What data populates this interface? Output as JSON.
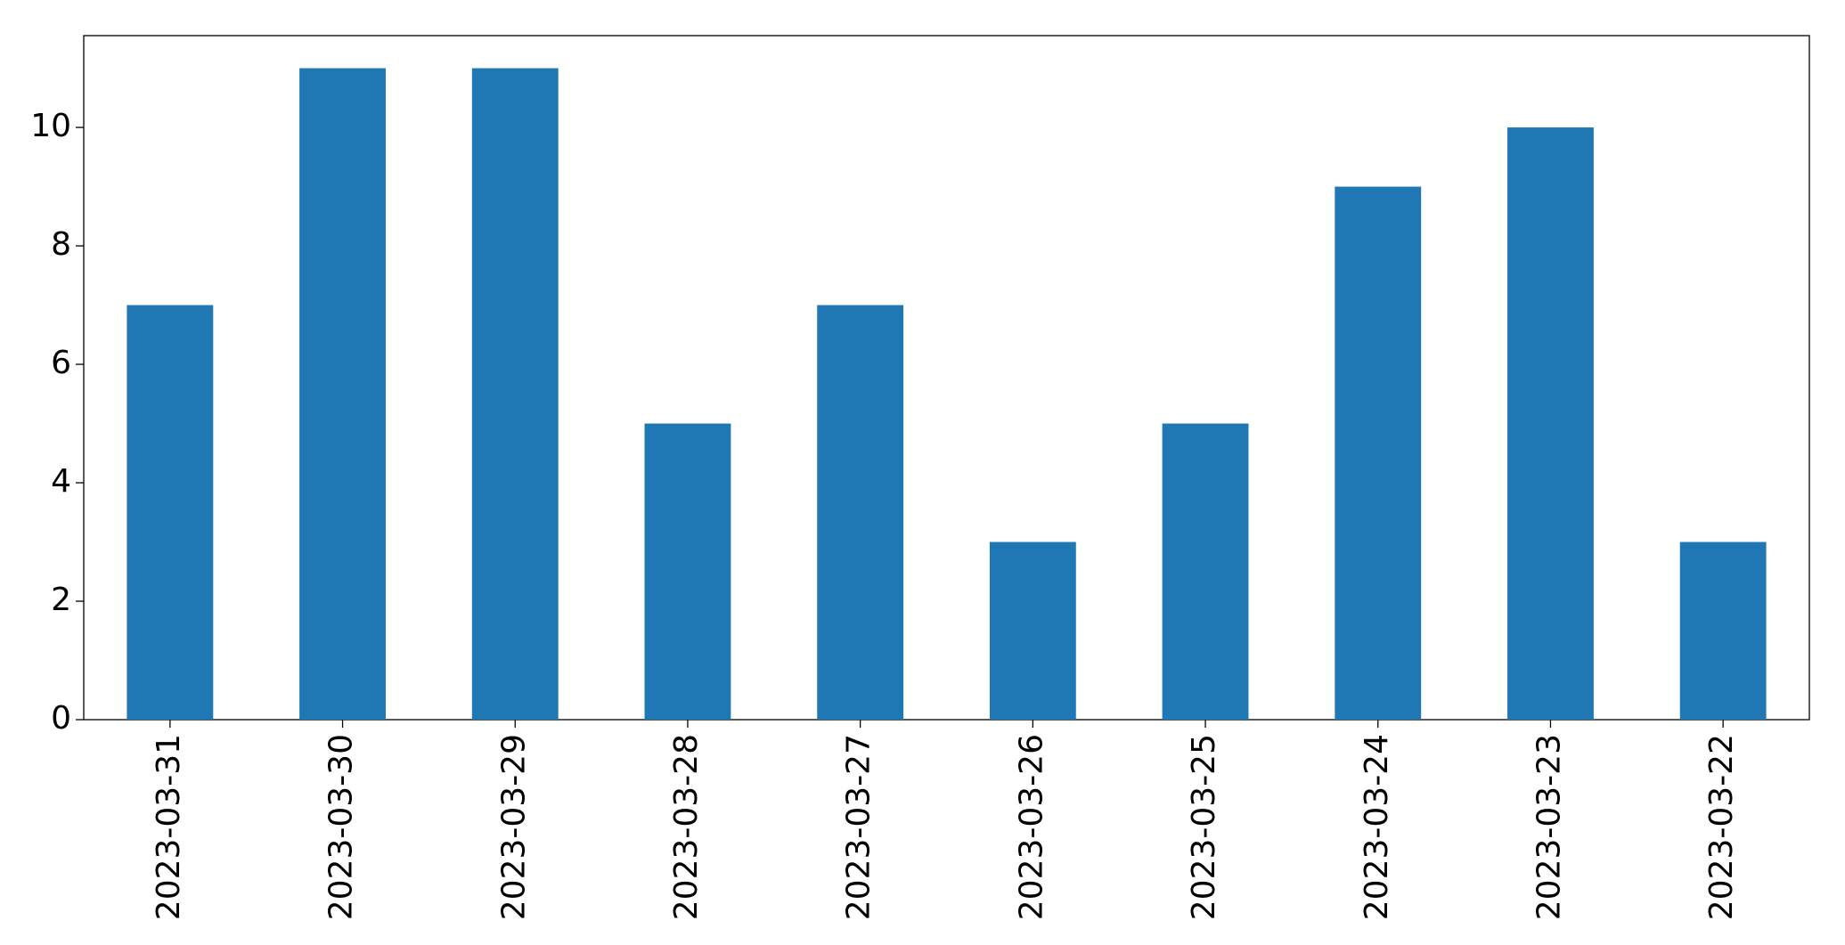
{
  "chart_data": {
    "type": "bar",
    "categories": [
      "2023-03-31",
      "2023-03-30",
      "2023-03-29",
      "2023-03-28",
      "2023-03-27",
      "2023-03-26",
      "2023-03-25",
      "2023-03-24",
      "2023-03-23",
      "2023-03-22"
    ],
    "values": [
      7,
      11,
      11,
      5,
      7,
      3,
      5,
      9,
      10,
      3
    ],
    "color": "#1f77b4",
    "ylim": [
      0,
      11.55
    ],
    "yticks": [
      0,
      2,
      4,
      6,
      8,
      10
    ],
    "grid": false
  }
}
